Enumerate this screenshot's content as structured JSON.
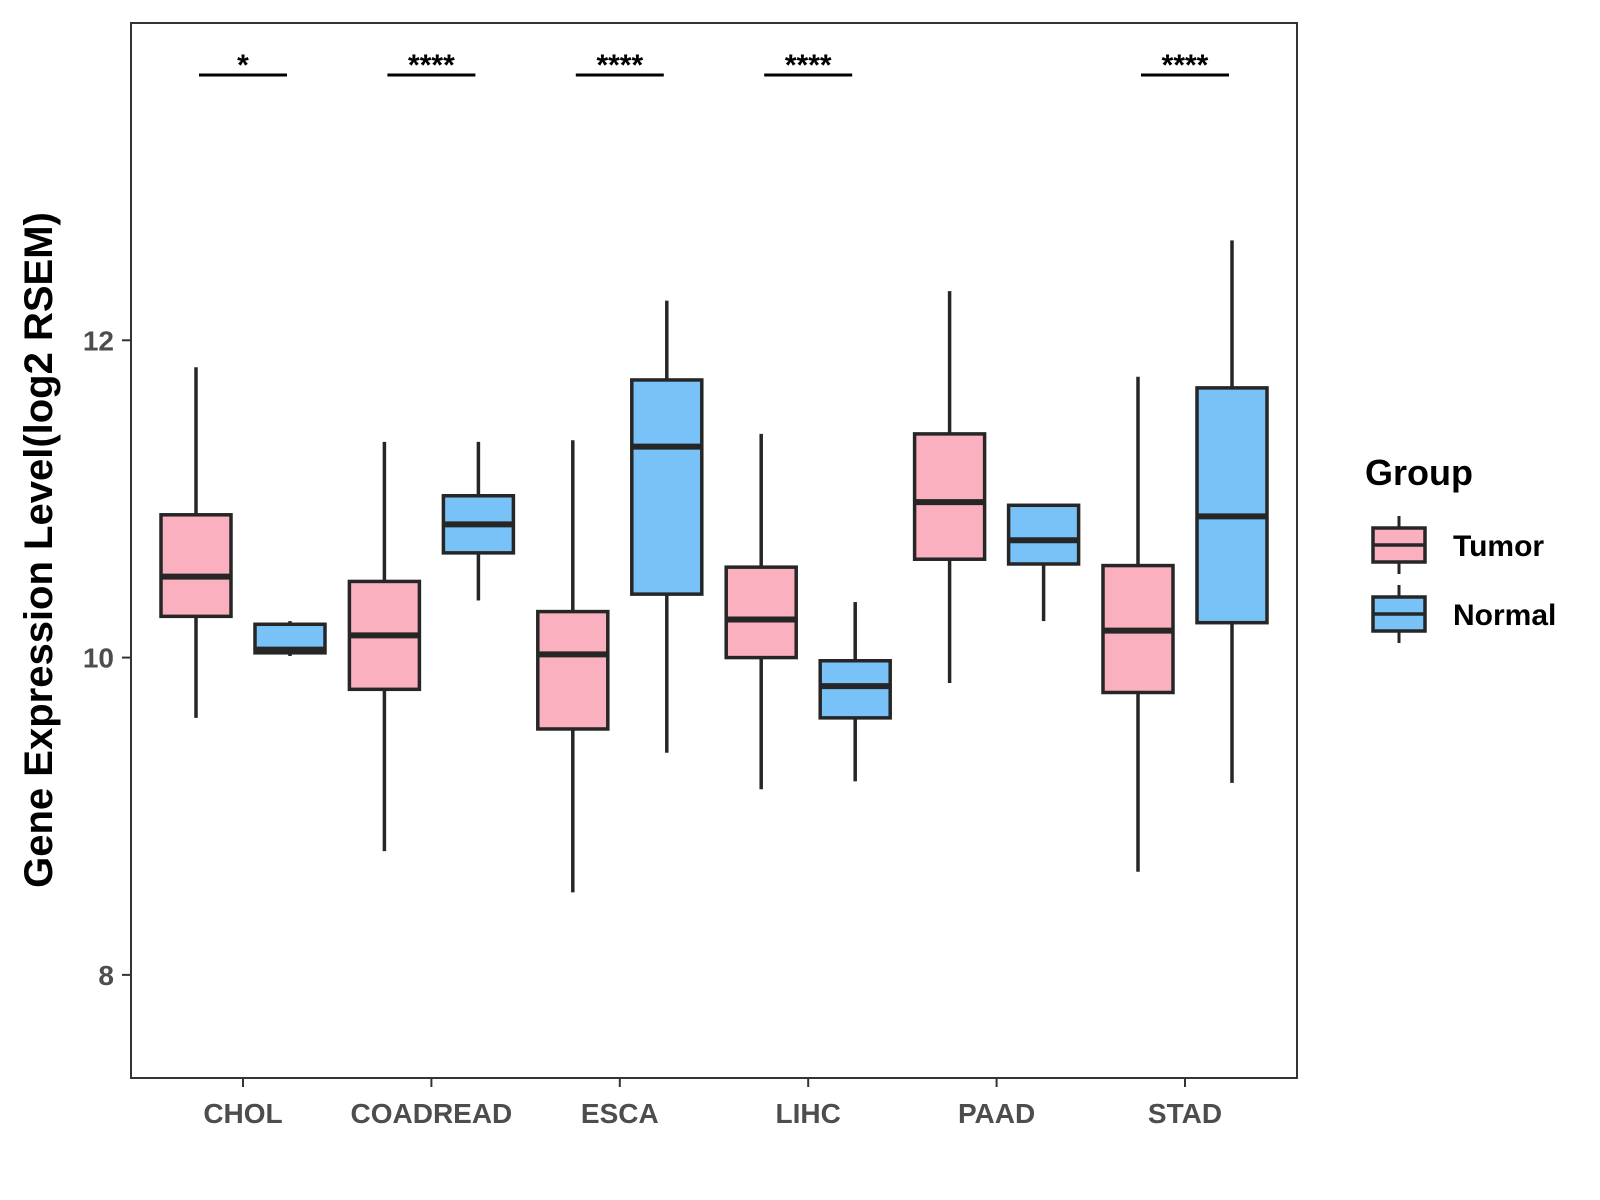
{
  "chart_data": {
    "type": "boxplot",
    "title": "",
    "xlabel": "",
    "ylabel": "Gene Expression Level(log2 RSEM)",
    "ylim": [
      7.35,
      14.0
    ],
    "yticks": [
      8,
      10,
      12
    ],
    "grid": false,
    "categories": [
      "CHOL",
      "COADREAD",
      "ESCA",
      "LIHC",
      "PAAD",
      "STAD"
    ],
    "legend": {
      "title": "Group",
      "position": "right",
      "entries": [
        "Tumor",
        "Normal"
      ]
    },
    "colors": {
      "Tumor": "#FBB0C0",
      "Normal": "#79C2F8",
      "outline": "#262626"
    },
    "series": [
      {
        "name": "Tumor",
        "boxes": [
          {
            "min": 9.62,
            "q1": 10.26,
            "median": 10.51,
            "q3": 10.9,
            "max": 11.83
          },
          {
            "min": 8.78,
            "q1": 9.8,
            "median": 10.14,
            "q3": 10.48,
            "max": 11.36
          },
          {
            "min": 8.52,
            "q1": 9.55,
            "median": 10.02,
            "q3": 10.29,
            "max": 11.37
          },
          {
            "min": 9.17,
            "q1": 10.0,
            "median": 10.24,
            "q3": 10.57,
            "max": 11.41
          },
          {
            "min": 9.84,
            "q1": 10.62,
            "median": 10.98,
            "q3": 11.41,
            "max": 12.31
          },
          {
            "min": 8.65,
            "q1": 9.78,
            "median": 10.17,
            "q3": 10.58,
            "max": 11.77
          }
        ]
      },
      {
        "name": "Normal",
        "boxes": [
          {
            "min": 10.01,
            "q1": 10.03,
            "median": 10.05,
            "q3": 10.21,
            "max": 10.23
          },
          {
            "min": 10.36,
            "q1": 10.66,
            "median": 10.84,
            "q3": 11.02,
            "max": 11.36
          },
          {
            "min": 9.4,
            "q1": 10.4,
            "median": 11.33,
            "q3": 11.75,
            "max": 12.25
          },
          {
            "min": 9.22,
            "q1": 9.62,
            "median": 9.82,
            "q3": 9.98,
            "max": 10.35
          },
          {
            "min": 10.23,
            "q1": 10.59,
            "median": 10.74,
            "q3": 10.96,
            "max": 10.96
          },
          {
            "min": 9.21,
            "q1": 10.22,
            "median": 10.89,
            "q3": 11.7,
            "max": 12.63
          }
        ]
      }
    ],
    "significance": [
      "*",
      "****",
      "****",
      "****",
      "",
      "****"
    ]
  }
}
